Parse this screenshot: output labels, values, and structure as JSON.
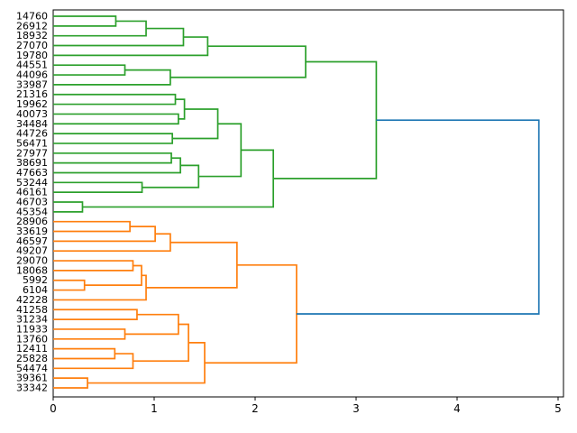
{
  "chart_data": {
    "type": "dendrogram",
    "title": "",
    "xlabel": "",
    "ylabel": "",
    "orientation": "leaves-left-root-right",
    "n_leaves": 39,
    "x_axis": {
      "ticks": [
        0,
        1,
        2,
        3,
        4,
        5
      ],
      "range": [
        0,
        5.05
      ],
      "grid": false
    },
    "colors": {
      "root": "#1f77b4",
      "cluster_top": "#2ca02c",
      "cluster_bottom": "#ff7f0e",
      "axis": "#000000",
      "background": "#ffffff"
    },
    "leaves_top_to_bottom": [
      "14760",
      "26912",
      "18932",
      "27070",
      "19780",
      "44551",
      "44096",
      "33987",
      "21316",
      "19962",
      "40073",
      "34484",
      "44726",
      "56471",
      "27977",
      "38691",
      "47663",
      "53244",
      "46161",
      "46703",
      "45354",
      "28906",
      "33619",
      "46597",
      "49207",
      "29070",
      "18068",
      "5992",
      "6104",
      "42228",
      "41258",
      "31234",
      "11933",
      "13760",
      "12411",
      "25828",
      "54474",
      "39361",
      "33342"
    ],
    "tree": {
      "h": 4.81,
      "col": "#1f77b4",
      "c": [
        {
          "h": 3.2,
          "col": "#2ca02c",
          "c": [
            {
              "h": 2.5,
              "c": [
                {
                  "h": 1.53,
                  "c": [
                    {
                      "h": 1.29,
                      "c": [
                        {
                          "h": 0.92,
                          "c": [
                            {
                              "h": 0.62,
                              "c": [
                                {
                                  "l": "14760"
                                },
                                {
                                  "l": "26912"
                                }
                              ]
                            },
                            {
                              "l": "18932"
                            }
                          ]
                        },
                        {
                          "l": "27070"
                        }
                      ]
                    },
                    {
                      "l": "19780"
                    }
                  ]
                },
                {
                  "h": 1.16,
                  "c": [
                    {
                      "h": 0.71,
                      "c": [
                        {
                          "l": "44551"
                        },
                        {
                          "l": "44096"
                        }
                      ]
                    },
                    {
                      "l": "33987"
                    }
                  ]
                }
              ]
            },
            {
              "h": 2.18,
              "c": [
                {
                  "h": 1.86,
                  "c": [
                    {
                      "h": 1.63,
                      "c": [
                        {
                          "h": 1.3,
                          "c": [
                            {
                              "h": 1.21,
                              "c": [
                                {
                                  "l": "21316"
                                },
                                {
                                  "l": "19962"
                                }
                              ]
                            },
                            {
                              "h": 1.24,
                              "c": [
                                {
                                  "l": "40073"
                                },
                                {
                                  "l": "34484"
                                }
                              ]
                            }
                          ]
                        },
                        {
                          "h": 1.18,
                          "c": [
                            {
                              "l": "44726"
                            },
                            {
                              "l": "56471"
                            }
                          ]
                        }
                      ]
                    },
                    {
                      "h": 1.44,
                      "c": [
                        {
                          "h": 1.26,
                          "c": [
                            {
                              "h": 1.17,
                              "c": [
                                {
                                  "l": "27977"
                                },
                                {
                                  "l": "38691"
                                }
                              ]
                            },
                            {
                              "l": "47663"
                            }
                          ]
                        },
                        {
                          "h": 0.88,
                          "c": [
                            {
                              "l": "53244"
                            },
                            {
                              "l": "46161"
                            }
                          ]
                        }
                      ]
                    }
                  ]
                },
                {
                  "h": 0.29,
                  "c": [
                    {
                      "l": "46703"
                    },
                    {
                      "l": "45354"
                    }
                  ]
                }
              ]
            }
          ]
        },
        {
          "h": 2.41,
          "col": "#ff7f0e",
          "c": [
            {
              "h": 1.82,
              "c": [
                {
                  "h": 1.16,
                  "c": [
                    {
                      "h": 1.01,
                      "c": [
                        {
                          "h": 0.76,
                          "c": [
                            {
                              "l": "28906"
                            },
                            {
                              "l": "33619"
                            }
                          ]
                        },
                        {
                          "l": "46597"
                        }
                      ]
                    },
                    {
                      "l": "49207"
                    }
                  ]
                },
                {
                  "h": 0.92,
                  "c": [
                    {
                      "h": 0.875,
                      "c": [
                        {
                          "h": 0.79,
                          "c": [
                            {
                              "l": "29070"
                            },
                            {
                              "l": "18068"
                            }
                          ]
                        },
                        {
                          "h": 0.31,
                          "c": [
                            {
                              "l": "5992"
                            },
                            {
                              "l": "6104"
                            }
                          ]
                        }
                      ]
                    },
                    {
                      "l": "42228"
                    }
                  ]
                }
              ]
            },
            {
              "h": 1.5,
              "c": [
                {
                  "h": 1.34,
                  "c": [
                    {
                      "h": 1.24,
                      "c": [
                        {
                          "h": 0.83,
                          "c": [
                            {
                              "l": "41258"
                            },
                            {
                              "l": "31234"
                            }
                          ]
                        },
                        {
                          "h": 0.71,
                          "c": [
                            {
                              "l": "11933"
                            },
                            {
                              "l": "13760"
                            }
                          ]
                        }
                      ]
                    },
                    {
                      "h": 0.79,
                      "c": [
                        {
                          "h": 0.61,
                          "c": [
                            {
                              "l": "12411"
                            },
                            {
                              "l": "25828"
                            }
                          ]
                        },
                        {
                          "l": "54474"
                        }
                      ]
                    }
                  ]
                },
                {
                  "h": 0.34,
                  "c": [
                    {
                      "l": "39361"
                    },
                    {
                      "l": "33342"
                    }
                  ]
                }
              ]
            }
          ]
        }
      ]
    }
  }
}
